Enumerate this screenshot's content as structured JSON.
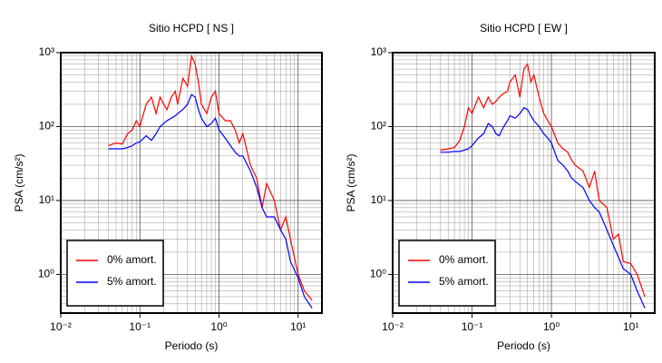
{
  "chart_data": [
    {
      "type": "line",
      "title": "Sitio HCPD [ NS ]",
      "x_label": "Periodo (s)",
      "y_label": "PSA (cm/s²)",
      "log_x": true,
      "log_y": true,
      "grid": true,
      "minor_grid": true,
      "legend": "lower left",
      "xlim": [
        0.01,
        20
      ],
      "ylim": [
        0.3,
        1000
      ],
      "xticks": [
        {
          "value": 0.01,
          "label": "10⁻²"
        },
        {
          "value": 0.1,
          "label": "10⁻¹"
        },
        {
          "value": 1,
          "label": "10⁰"
        },
        {
          "value": 10,
          "label": "10¹"
        }
      ],
      "yticks": [
        {
          "value": 1,
          "label": "10⁰"
        },
        {
          "value": 10,
          "label": "10¹"
        },
        {
          "value": 100,
          "label": "10²"
        },
        {
          "value": 1000,
          "label": "10³"
        }
      ],
      "x": [
        0.04,
        0.05,
        0.06,
        0.07,
        0.08,
        0.09,
        0.1,
        0.12,
        0.14,
        0.16,
        0.18,
        0.2,
        0.22,
        0.25,
        0.28,
        0.3,
        0.35,
        0.4,
        0.45,
        0.5,
        0.55,
        0.6,
        0.7,
        0.8,
        0.9,
        1.0,
        1.2,
        1.4,
        1.6,
        1.8,
        2,
        2.5,
        3,
        3.5,
        4,
        5,
        6,
        7,
        8,
        10,
        12,
        15
      ],
      "series": [
        {
          "name": "0% amort.",
          "color": "#ff0000",
          "values": [
            55,
            60,
            58,
            80,
            90,
            120,
            100,
            200,
            250,
            150,
            250,
            200,
            170,
            250,
            300,
            200,
            450,
            350,
            900,
            700,
            400,
            200,
            150,
            250,
            300,
            150,
            120,
            120,
            90,
            60,
            80,
            30,
            20,
            8,
            17,
            10,
            4,
            6,
            3,
            1,
            0.6,
            0.45
          ]
        },
        {
          "name": "5% amort.",
          "color": "#0000ff",
          "values": [
            50,
            50,
            50,
            52,
            55,
            60,
            62,
            75,
            65,
            80,
            100,
            110,
            120,
            130,
            140,
            150,
            170,
            200,
            270,
            250,
            170,
            130,
            100,
            110,
            130,
            90,
            70,
            55,
            45,
            40,
            40,
            25,
            15,
            8,
            6,
            6,
            4,
            3,
            1.5,
            0.9,
            0.5,
            0.35
          ]
        }
      ]
    },
    {
      "type": "line",
      "title": "Sitio HCPD [ EW ]",
      "x_label": "Periodo (s)",
      "y_label": "PSA (cm/s²)",
      "log_x": true,
      "log_y": true,
      "grid": true,
      "minor_grid": true,
      "legend": "lower left",
      "xlim": [
        0.01,
        20
      ],
      "ylim": [
        0.3,
        1000
      ],
      "xticks": [
        {
          "value": 0.01,
          "label": "10⁻²"
        },
        {
          "value": 0.1,
          "label": "10⁻¹"
        },
        {
          "value": 1,
          "label": "10⁰"
        },
        {
          "value": 10,
          "label": "10¹"
        }
      ],
      "yticks": [
        {
          "value": 1,
          "label": "10⁰"
        },
        {
          "value": 10,
          "label": "10¹"
        },
        {
          "value": 100,
          "label": "10²"
        },
        {
          "value": 1000,
          "label": "10³"
        }
      ],
      "x": [
        0.04,
        0.05,
        0.06,
        0.07,
        0.08,
        0.09,
        0.1,
        0.12,
        0.14,
        0.16,
        0.18,
        0.2,
        0.22,
        0.25,
        0.28,
        0.3,
        0.35,
        0.4,
        0.45,
        0.5,
        0.55,
        0.6,
        0.7,
        0.8,
        0.9,
        1.0,
        1.2,
        1.4,
        1.6,
        1.8,
        2,
        2.5,
        3,
        3.5,
        4,
        5,
        6,
        7,
        8,
        10,
        12,
        15
      ],
      "series": [
        {
          "name": "0% amort.",
          "color": "#ff0000",
          "values": [
            48,
            50,
            52,
            65,
            100,
            180,
            150,
            250,
            180,
            250,
            200,
            220,
            250,
            280,
            300,
            400,
            500,
            250,
            600,
            700,
            400,
            500,
            250,
            150,
            120,
            100,
            60,
            50,
            45,
            35,
            30,
            25,
            15,
            25,
            10,
            8,
            3,
            3.5,
            1.5,
            1.4,
            1,
            0.5
          ]
        },
        {
          "name": "5% amort.",
          "color": "#0000ff",
          "values": [
            45,
            45,
            46,
            46,
            48,
            50,
            55,
            70,
            80,
            110,
            100,
            80,
            75,
            100,
            120,
            140,
            130,
            150,
            180,
            170,
            140,
            120,
            100,
            80,
            70,
            60,
            35,
            30,
            25,
            20,
            18,
            15,
            10,
            8,
            7,
            4,
            2.5,
            1.7,
            1.2,
            1,
            0.6,
            0.35
          ]
        }
      ]
    }
  ]
}
